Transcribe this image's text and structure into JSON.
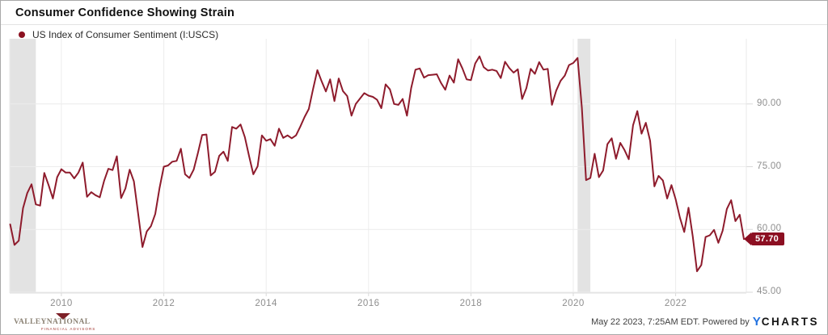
{
  "header": {
    "title": "Consumer Confidence Showing Strain"
  },
  "legend": {
    "label": "US Index of Consumer Sentiment (I:USCS)",
    "marker_color": "#8B1120"
  },
  "chart_data": {
    "type": "line",
    "title": "Consumer Confidence Showing Strain",
    "xlabel": "",
    "ylabel": "",
    "grid": true,
    "legend_position": "top-left",
    "xlim": [
      2008.99,
      2023.38
    ],
    "ylim": [
      44.8,
      105.6
    ],
    "x_ticks": [
      {
        "value": 2010,
        "label": "2010"
      },
      {
        "value": 2012,
        "label": "2012"
      },
      {
        "value": 2014,
        "label": "2014"
      },
      {
        "value": 2016,
        "label": "2016"
      },
      {
        "value": 2018,
        "label": "2018"
      },
      {
        "value": 2020,
        "label": "2020"
      },
      {
        "value": 2022,
        "label": "2022"
      }
    ],
    "y_ticks": [
      {
        "value": 90,
        "label": "90.00"
      },
      {
        "value": 75,
        "label": "75.00"
      },
      {
        "value": 60,
        "label": "60.00"
      },
      {
        "value": 45,
        "label": "45.00"
      }
    ],
    "recession_bands": [
      {
        "start": 2009.0,
        "end": 2009.5
      },
      {
        "start": 2020.083,
        "end": 2020.333
      }
    ],
    "series": [
      {
        "name": "US Index of Consumer Sentiment (I:USCS)",
        "color": "#8E1B2C",
        "frequency": "monthly",
        "start_year": 2009,
        "start_month": 1,
        "values": [
          61.2,
          56.3,
          57.3,
          65.1,
          68.7,
          70.8,
          66.0,
          65.7,
          73.5,
          70.6,
          67.4,
          72.5,
          74.4,
          73.6,
          73.6,
          72.2,
          73.6,
          76.0,
          67.8,
          68.9,
          68.2,
          67.7,
          71.6,
          74.5,
          74.2,
          77.5,
          67.5,
          69.8,
          74.3,
          71.5,
          63.7,
          55.8,
          59.5,
          60.8,
          63.7,
          69.9,
          75.0,
          75.3,
          76.2,
          76.4,
          79.3,
          73.2,
          72.3,
          74.3,
          78.3,
          82.6,
          82.7,
          72.9,
          73.8,
          77.6,
          78.6,
          76.4,
          84.5,
          84.1,
          85.1,
          82.1,
          77.5,
          73.2,
          75.1,
          82.5,
          81.2,
          81.6,
          80.0,
          84.1,
          81.9,
          82.5,
          81.8,
          82.5,
          84.6,
          86.9,
          88.8,
          93.6,
          98.1,
          95.4,
          93.0,
          95.9,
          90.7,
          96.1,
          93.1,
          91.9,
          87.2,
          90.0,
          91.3,
          92.6,
          92.0,
          91.7,
          91.0,
          89.0,
          94.7,
          93.5,
          90.0,
          89.8,
          91.2,
          87.2,
          93.8,
          98.2,
          98.5,
          96.3,
          96.9,
          97.0,
          97.1,
          95.0,
          93.4,
          96.8,
          95.1,
          100.7,
          98.5,
          95.9,
          95.7,
          99.7,
          101.4,
          98.8,
          98.0,
          98.2,
          97.9,
          96.2,
          100.1,
          98.6,
          97.5,
          98.3,
          91.2,
          93.8,
          98.4,
          97.2,
          100.0,
          98.2,
          98.4,
          89.8,
          93.2,
          95.5,
          96.8,
          99.3,
          99.8,
          101.0,
          89.1,
          71.8,
          72.3,
          78.1,
          72.5,
          74.1,
          80.4,
          81.8,
          76.9,
          80.7,
          79.0,
          76.8,
          84.9,
          88.3,
          82.9,
          85.5,
          81.2,
          70.3,
          72.8,
          71.7,
          67.4,
          70.6,
          67.2,
          62.8,
          59.4,
          65.2,
          58.4,
          50.0,
          51.5,
          58.2,
          58.6,
          59.9,
          56.8,
          59.7,
          64.9,
          67.0,
          62.0,
          63.5,
          57.7
        ]
      }
    ],
    "last_value_label": "57.70",
    "badge_color": "#8C0F22"
  },
  "footer": {
    "logo": {
      "word1": "VALLEY",
      "word2": "NATIONAL",
      "subtext": "FINANCIAL ADVISORS"
    },
    "timestamp": "May 22 2023, 7:25AM EDT. Powered by",
    "brand": {
      "prefix": "Y",
      "name": "CHARTS",
      "y_color": "#2272E0"
    }
  }
}
